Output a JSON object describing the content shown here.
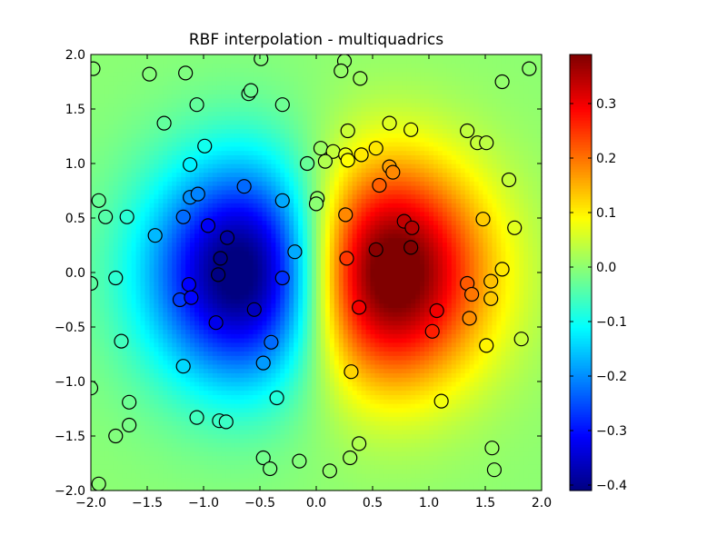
{
  "chart_data": {
    "type": "heatmap",
    "title": "RBF interpolation - multiquadrics",
    "xlabel": "",
    "ylabel": "",
    "xlim": [
      -2.0,
      2.0
    ],
    "ylim": [
      -2.0,
      2.0
    ],
    "xticks": [
      -2.0,
      -1.5,
      -1.0,
      -0.5,
      0.0,
      0.5,
      1.0,
      1.5,
      2.0
    ],
    "yticks": [
      -2.0,
      -1.5,
      -1.0,
      -0.5,
      0.0,
      0.5,
      1.0,
      1.5,
      2.0
    ],
    "xtick_labels": [
      "−2.0",
      "−1.5",
      "−1.0",
      "−0.5",
      "0.0",
      "0.5",
      "1.0",
      "1.5",
      "2.0"
    ],
    "ytick_labels": [
      "−2.0",
      "−1.5",
      "−1.0",
      "−0.5",
      "0.0",
      "0.5",
      "1.0",
      "1.5",
      "2.0"
    ],
    "colormap": "jet",
    "colorbar": {
      "vmin": -0.41,
      "vmax": 0.39,
      "ticks": [
        -0.4,
        -0.3,
        -0.2,
        -0.1,
        0.0,
        0.1,
        0.2,
        0.3
      ],
      "tick_labels": [
        "−0.4",
        "−0.3",
        "−0.2",
        "−0.1",
        "0.0",
        "0.1",
        "0.2",
        "0.3"
      ]
    },
    "field": {
      "description": "z = x * exp(-x^2 - y^2)",
      "grid_resolution": 100
    },
    "scatter_points": [
      {
        "x": -1.98,
        "y": 1.87
      },
      {
        "x": -1.48,
        "y": 1.82
      },
      {
        "x": -1.16,
        "y": 1.83
      },
      {
        "x": -0.49,
        "y": 1.96
      },
      {
        "x": 0.25,
        "y": 1.94
      },
      {
        "x": 0.22,
        "y": 1.85
      },
      {
        "x": 0.39,
        "y": 1.78
      },
      {
        "x": 1.65,
        "y": 1.75
      },
      {
        "x": 1.89,
        "y": 1.87
      },
      {
        "x": -0.6,
        "y": 1.64
      },
      {
        "x": -0.58,
        "y": 1.67
      },
      {
        "x": -1.06,
        "y": 1.54
      },
      {
        "x": -0.3,
        "y": 1.54
      },
      {
        "x": -1.35,
        "y": 1.37
      },
      {
        "x": 0.28,
        "y": 1.3
      },
      {
        "x": 0.65,
        "y": 1.37
      },
      {
        "x": 0.84,
        "y": 1.31
      },
      {
        "x": 1.34,
        "y": 1.3
      },
      {
        "x": 1.43,
        "y": 1.19
      },
      {
        "x": 1.51,
        "y": 1.19
      },
      {
        "x": -0.99,
        "y": 1.16
      },
      {
        "x": 0.04,
        "y": 1.14
      },
      {
        "x": 0.15,
        "y": 1.11
      },
      {
        "x": 0.26,
        "y": 1.08
      },
      {
        "x": 0.53,
        "y": 1.14
      },
      {
        "x": 0.4,
        "y": 1.08
      },
      {
        "x": -0.08,
        "y": 1.0
      },
      {
        "x": 0.08,
        "y": 1.02
      },
      {
        "x": 0.28,
        "y": 1.03
      },
      {
        "x": 0.65,
        "y": 0.97
      },
      {
        "x": 0.68,
        "y": 0.92
      },
      {
        "x": -1.12,
        "y": 0.99
      },
      {
        "x": 1.71,
        "y": 0.85
      },
      {
        "x": 0.56,
        "y": 0.8
      },
      {
        "x": -0.64,
        "y": 0.79
      },
      {
        "x": -1.93,
        "y": 0.66
      },
      {
        "x": -1.12,
        "y": 0.69
      },
      {
        "x": -1.05,
        "y": 0.72
      },
      {
        "x": -0.3,
        "y": 0.66
      },
      {
        "x": 0.01,
        "y": 0.68
      },
      {
        "x": 0.0,
        "y": 0.63
      },
      {
        "x": -1.87,
        "y": 0.51
      },
      {
        "x": -1.68,
        "y": 0.51
      },
      {
        "x": -1.18,
        "y": 0.51
      },
      {
        "x": 0.26,
        "y": 0.53
      },
      {
        "x": 0.78,
        "y": 0.47
      },
      {
        "x": 0.85,
        "y": 0.41
      },
      {
        "x": 1.48,
        "y": 0.49
      },
      {
        "x": 1.76,
        "y": 0.41
      },
      {
        "x": -0.96,
        "y": 0.43
      },
      {
        "x": -1.43,
        "y": 0.34
      },
      {
        "x": -0.79,
        "y": 0.32
      },
      {
        "x": -0.19,
        "y": 0.19
      },
      {
        "x": 0.53,
        "y": 0.21
      },
      {
        "x": 0.84,
        "y": 0.23
      },
      {
        "x": -0.85,
        "y": 0.13
      },
      {
        "x": 0.27,
        "y": 0.13
      },
      {
        "x": -0.87,
        "y": -0.02
      },
      {
        "x": -0.3,
        "y": -0.05
      },
      {
        "x": -1.78,
        "y": -0.05
      },
      {
        "x": -2.0,
        "y": -0.1
      },
      {
        "x": -1.13,
        "y": -0.11
      },
      {
        "x": 1.34,
        "y": -0.1
      },
      {
        "x": 1.55,
        "y": -0.08
      },
      {
        "x": 1.65,
        "y": 0.03
      },
      {
        "x": -1.21,
        "y": -0.25
      },
      {
        "x": -1.11,
        "y": -0.23
      },
      {
        "x": 1.38,
        "y": -0.2
      },
      {
        "x": 1.55,
        "y": -0.24
      },
      {
        "x": -0.55,
        "y": -0.34
      },
      {
        "x": 0.38,
        "y": -0.32
      },
      {
        "x": 1.07,
        "y": -0.35
      },
      {
        "x": -0.89,
        "y": -0.46
      },
      {
        "x": 1.36,
        "y": -0.42
      },
      {
        "x": 1.03,
        "y": -0.54
      },
      {
        "x": -1.73,
        "y": -0.63
      },
      {
        "x": -0.4,
        "y": -0.64
      },
      {
        "x": 1.51,
        "y": -0.67
      },
      {
        "x": 1.82,
        "y": -0.61
      },
      {
        "x": -1.18,
        "y": -0.86
      },
      {
        "x": -0.47,
        "y": -0.83
      },
      {
        "x": 0.31,
        "y": -0.91
      },
      {
        "x": -2.0,
        "y": -1.06
      },
      {
        "x": -0.35,
        "y": -1.15
      },
      {
        "x": 1.11,
        "y": -1.18
      },
      {
        "x": -1.66,
        "y": -1.19
      },
      {
        "x": -1.06,
        "y": -1.33
      },
      {
        "x": -0.86,
        "y": -1.36
      },
      {
        "x": -0.8,
        "y": -1.37
      },
      {
        "x": -1.66,
        "y": -1.4
      },
      {
        "x": -1.78,
        "y": -1.5
      },
      {
        "x": 0.38,
        "y": -1.57
      },
      {
        "x": 1.56,
        "y": -1.61
      },
      {
        "x": -0.47,
        "y": -1.7
      },
      {
        "x": -0.41,
        "y": -1.8
      },
      {
        "x": -0.15,
        "y": -1.73
      },
      {
        "x": 0.3,
        "y": -1.7
      },
      {
        "x": 0.12,
        "y": -1.82
      },
      {
        "x": 1.58,
        "y": -1.81
      },
      {
        "x": -1.93,
        "y": -1.94
      }
    ]
  }
}
